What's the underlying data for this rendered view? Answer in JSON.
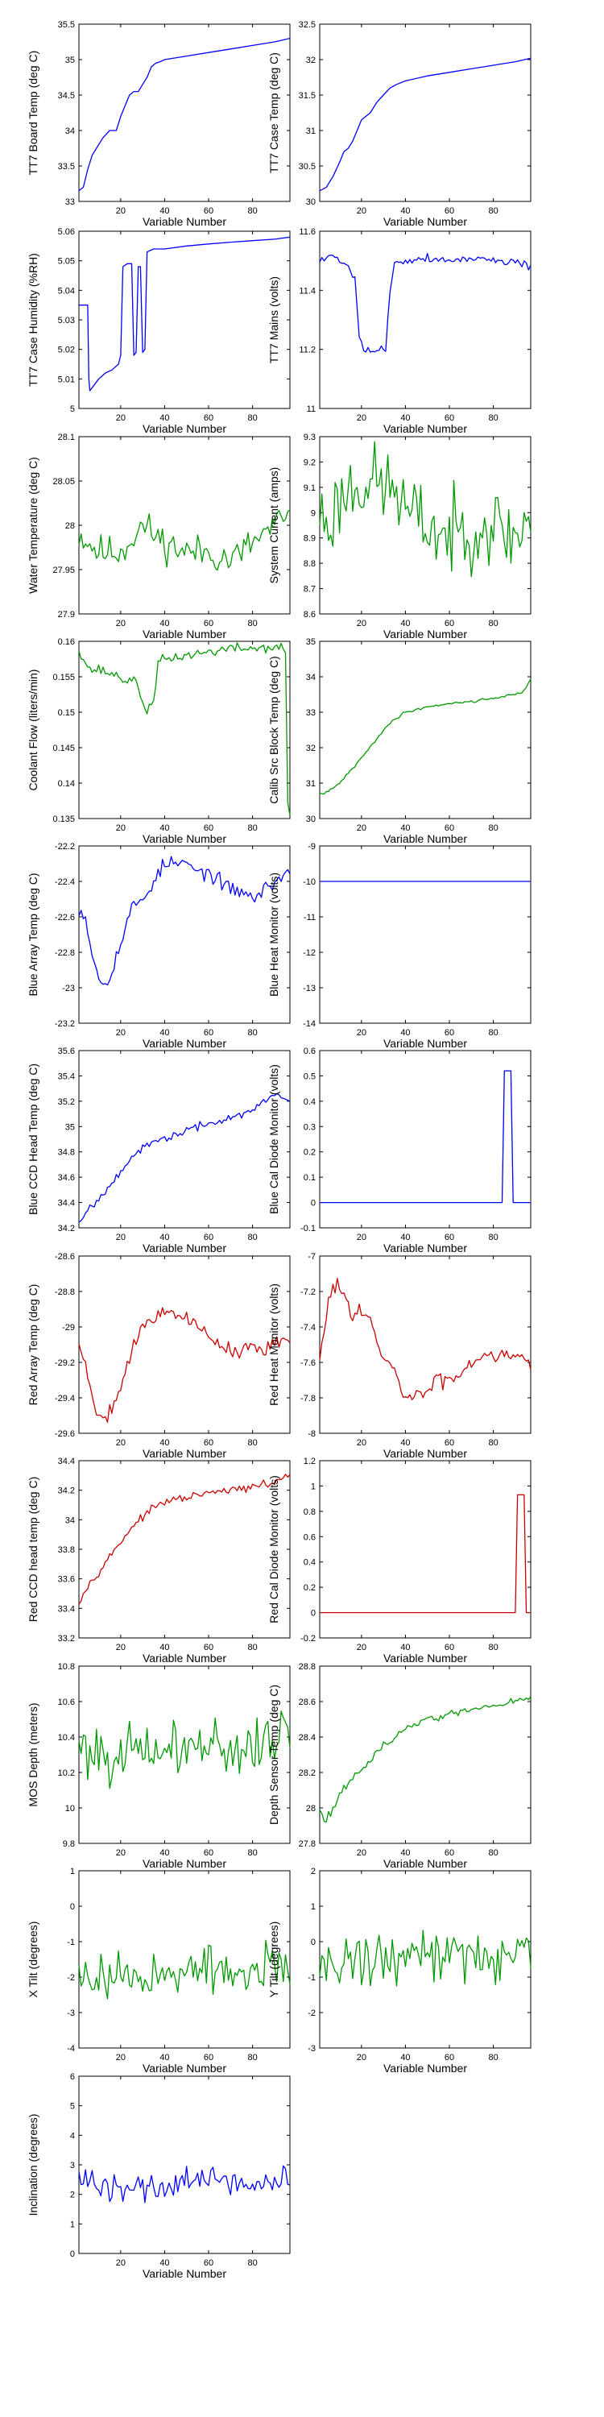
{
  "figure": {
    "background": "#ffffff",
    "x_label": "Variable Number",
    "x_ticks": [
      20,
      40,
      60,
      80
    ],
    "x_range": [
      1,
      97
    ]
  },
  "chart_data": [
    {
      "type": "line",
      "ylabel": "TT7 Board Temp (deg C)",
      "color": "#0000ff",
      "ylim": [
        33,
        35.5
      ],
      "yticks": [
        "33",
        "33.5",
        "34",
        "34.5",
        "35",
        "35.5"
      ],
      "x": [
        1,
        3,
        5,
        7,
        9,
        12,
        15,
        18,
        20,
        22,
        24,
        26,
        28,
        30,
        32,
        34,
        36,
        38,
        40,
        50,
        60,
        70,
        80,
        90,
        97
      ],
      "y": [
        33.15,
        33.2,
        33.45,
        33.65,
        33.75,
        33.9,
        34.0,
        34.0,
        34.2,
        34.35,
        34.5,
        34.55,
        34.55,
        34.65,
        34.75,
        34.9,
        34.95,
        34.97,
        35.0,
        35.05,
        35.1,
        35.15,
        35.2,
        35.25,
        35.3
      ]
    },
    {
      "type": "line",
      "ylabel": "TT7 Case Temp (deg C)",
      "color": "#0000ff",
      "ylim": [
        30,
        32.5
      ],
      "yticks": [
        "30",
        "30.5",
        "31",
        "31.5",
        "32",
        "32.5"
      ],
      "x": [
        1,
        4,
        7,
        10,
        12,
        14,
        16,
        18,
        20,
        22,
        24,
        27,
        30,
        33,
        36,
        40,
        50,
        60,
        70,
        80,
        90,
        97
      ],
      "y": [
        30.15,
        30.2,
        30.35,
        30.55,
        30.7,
        30.75,
        30.85,
        31.0,
        31.15,
        31.2,
        31.25,
        31.4,
        31.5,
        31.6,
        31.65,
        31.7,
        31.77,
        31.82,
        31.87,
        31.92,
        31.97,
        32.02
      ]
    },
    {
      "type": "line",
      "ylabel": "TT7 Case Humidity (%RH)",
      "color": "#0000ff",
      "ylim": [
        5,
        5.06
      ],
      "yticks": [
        "5",
        "5.01",
        "5.02",
        "5.03",
        "5.04",
        "5.05",
        "5.06"
      ],
      "x": [
        1,
        3,
        5,
        5.5,
        6,
        8,
        10,
        13,
        16,
        19,
        20,
        21,
        23,
        24,
        25,
        26,
        27,
        28,
        29,
        30,
        31,
        32,
        35,
        40,
        50,
        60,
        70,
        80,
        90,
        97
      ],
      "y": [
        5.035,
        5.035,
        5.035,
        5.01,
        5.006,
        5.008,
        5.01,
        5.012,
        5.013,
        5.015,
        5.018,
        5.048,
        5.049,
        5.049,
        5.049,
        5.018,
        5.019,
        5.048,
        5.048,
        5.019,
        5.02,
        5.053,
        5.054,
        5.054,
        5.055,
        5.0557,
        5.0563,
        5.0568,
        5.0573,
        5.058
      ]
    },
    {
      "type": "line",
      "ylabel": "TT7 Mains  (volts)",
      "color": "#0000ff",
      "ylim": [
        11,
        11.6
      ],
      "yticks": [
        "11",
        "11.2",
        "11.4",
        "11.6"
      ],
      "seed": 5,
      "noise": 0.012,
      "x": [
        1,
        5,
        10,
        14,
        17,
        19,
        21,
        23,
        26,
        29,
        31,
        33,
        35,
        40,
        50,
        60,
        70,
        80,
        90,
        97
      ],
      "y": [
        11.5,
        11.52,
        11.5,
        11.48,
        11.45,
        11.25,
        11.2,
        11.2,
        11.19,
        11.2,
        11.2,
        11.4,
        11.5,
        11.5,
        11.51,
        11.5,
        11.51,
        11.5,
        11.5,
        11.48
      ]
    },
    {
      "type": "line",
      "ylabel": "Water Temperature (deg C)",
      "color": "#009900",
      "ylim": [
        27.9,
        28.1
      ],
      "yticks": [
        "27.9",
        "27.95",
        "28",
        "28.05",
        "28.1"
      ],
      "seed": 11,
      "noise": 0.016,
      "x": [
        1,
        10,
        20,
        30,
        40,
        50,
        60,
        70,
        80,
        90,
        97
      ],
      "y": [
        27.99,
        27.97,
        27.97,
        28.0,
        27.98,
        27.97,
        27.97,
        27.96,
        27.98,
        28.0,
        28.01
      ]
    },
    {
      "type": "line",
      "ylabel": "System Current (amps)",
      "color": "#009900",
      "ylim": [
        8.6,
        9.3
      ],
      "yticks": [
        "8.6",
        "8.7",
        "8.8",
        "8.9",
        "9",
        "9.1",
        "9.2",
        "9.3"
      ],
      "seed": 23,
      "noise": 0.13,
      "x": [
        1,
        5,
        10,
        15,
        20,
        25,
        30,
        35,
        38,
        40,
        50,
        60,
        70,
        80,
        90,
        97
      ],
      "y": [
        9.0,
        8.95,
        9.05,
        9.1,
        9.12,
        9.12,
        9.1,
        9.1,
        9.05,
        9.0,
        8.95,
        8.9,
        8.95,
        8.95,
        8.9,
        9.0
      ]
    },
    {
      "type": "line",
      "ylabel": "Coolant Flow (liters/min)",
      "color": "#009900",
      "ylim": [
        0.135,
        0.16
      ],
      "yticks": [
        "0.135",
        "0.14",
        "0.145",
        "0.15",
        "0.155",
        "0.16"
      ],
      "seed": 37,
      "noise": 0.0006,
      "x": [
        1,
        4,
        6,
        10,
        15,
        20,
        24,
        27,
        30,
        32,
        35,
        37,
        40,
        50,
        60,
        70,
        80,
        90,
        95,
        96,
        97
      ],
      "y": [
        0.159,
        0.157,
        0.156,
        0.156,
        0.1555,
        0.155,
        0.154,
        0.155,
        0.151,
        0.1505,
        0.151,
        0.157,
        0.1575,
        0.158,
        0.1585,
        0.159,
        0.159,
        0.1592,
        0.1588,
        0.137,
        0.135
      ]
    },
    {
      "type": "line",
      "ylabel": "Calib Src Block Temp (deg C)",
      "color": "#009900",
      "ylim": [
        30,
        35
      ],
      "yticks": [
        "30",
        "31",
        "32",
        "33",
        "34",
        "35"
      ],
      "seed": 41,
      "noise": 0.03,
      "x": [
        1,
        5,
        10,
        15,
        20,
        25,
        30,
        35,
        40,
        50,
        60,
        70,
        80,
        90,
        94,
        97
      ],
      "y": [
        30.7,
        30.75,
        31.0,
        31.35,
        31.7,
        32.1,
        32.5,
        32.8,
        33.0,
        33.15,
        33.25,
        33.3,
        33.4,
        33.5,
        33.6,
        33.95
      ]
    },
    {
      "type": "line",
      "ylabel": "Blue Array Temp (deg C)",
      "color": "#0000ff",
      "ylim": [
        -23.2,
        -22.2
      ],
      "yticks": [
        "-23.2",
        "-23",
        "-22.8",
        "-22.6",
        "-22.4",
        "-22.2"
      ],
      "seed": 53,
      "noise": 0.035,
      "x": [
        1,
        4,
        7,
        10,
        13,
        16,
        20,
        25,
        30,
        35,
        40,
        45,
        50,
        55,
        60,
        65,
        70,
        75,
        80,
        85,
        90,
        97
      ],
      "y": [
        -22.55,
        -22.6,
        -22.8,
        -22.95,
        -22.97,
        -22.9,
        -22.75,
        -22.55,
        -22.5,
        -22.4,
        -22.3,
        -22.3,
        -22.3,
        -22.35,
        -22.35,
        -22.4,
        -22.45,
        -22.45,
        -22.5,
        -22.45,
        -22.4,
        -22.35
      ]
    },
    {
      "type": "line",
      "ylabel": "Blue Heat Monitor (volts)",
      "color": "#0000ff",
      "ylim": [
        -14,
        -9
      ],
      "yticks": [
        "-14",
        "-13",
        "-12",
        "-11",
        "-10",
        "-9"
      ],
      "x": [
        1,
        97
      ],
      "y": [
        -10,
        -10
      ]
    },
    {
      "type": "line",
      "ylabel": "Blue CCD Head Temp (deg C)",
      "color": "#0000ff",
      "ylim": [
        34.2,
        35.6
      ],
      "yticks": [
        "34.2",
        "34.4",
        "34.6",
        "34.8",
        "35",
        "35.2",
        "35.4",
        "35.6"
      ],
      "seed": 67,
      "noise": 0.025,
      "x": [
        1,
        5,
        10,
        15,
        20,
        25,
        30,
        35,
        40,
        50,
        60,
        70,
        80,
        85,
        90,
        95,
        97
      ],
      "y": [
        34.25,
        34.35,
        34.42,
        34.55,
        34.65,
        34.75,
        34.82,
        34.88,
        34.9,
        34.97,
        35.02,
        35.07,
        35.12,
        35.2,
        35.25,
        35.22,
        35.2
      ]
    },
    {
      "type": "line",
      "ylabel": "Blue Cal Diode Monitor (volts)",
      "color": "#0000ff",
      "ylim": [
        -0.1,
        0.6
      ],
      "yticks": [
        "-0.1",
        "0",
        "0.1",
        "0.2",
        "0.3",
        "0.4",
        "0.5",
        "0.6"
      ],
      "x": [
        1,
        84,
        85,
        86,
        87,
        88,
        89,
        97
      ],
      "y": [
        0,
        0,
        0.52,
        0.52,
        0.52,
        0.52,
        0,
        0
      ]
    },
    {
      "type": "line",
      "ylabel": "Red Array Temp (deg C)",
      "color": "#cc0000",
      "ylim": [
        -29.6,
        -28.6
      ],
      "yticks": [
        "-29.6",
        "-29.4",
        "-29.2",
        "-29",
        "-28.8",
        "-28.6"
      ],
      "seed": 79,
      "noise": 0.035,
      "x": [
        1,
        4,
        7,
        10,
        14,
        18,
        22,
        26,
        30,
        35,
        40,
        45,
        50,
        55,
        60,
        65,
        70,
        75,
        80,
        85,
        90,
        97
      ],
      "y": [
        -29.1,
        -29.2,
        -29.4,
        -29.5,
        -29.5,
        -29.4,
        -29.25,
        -29.1,
        -29.0,
        -28.95,
        -28.9,
        -28.92,
        -28.95,
        -29.0,
        -29.05,
        -29.1,
        -29.12,
        -29.15,
        -29.1,
        -29.15,
        -29.1,
        -29.05
      ]
    },
    {
      "type": "line",
      "ylabel": "Red Heat Monitor (volts)",
      "color": "#cc0000",
      "ylim": [
        -8,
        -7
      ],
      "yticks": [
        "-8",
        "-7.8",
        "-7.6",
        "-7.4",
        "-7.2",
        "-7"
      ],
      "seed": 83,
      "noise": 0.04,
      "x": [
        1,
        4,
        7,
        10,
        13,
        16,
        20,
        25,
        30,
        35,
        40,
        45,
        50,
        55,
        60,
        65,
        70,
        75,
        80,
        85,
        90,
        97
      ],
      "y": [
        -7.6,
        -7.35,
        -7.15,
        -7.18,
        -7.25,
        -7.3,
        -7.3,
        -7.4,
        -7.6,
        -7.65,
        -7.8,
        -7.8,
        -7.75,
        -7.7,
        -7.7,
        -7.65,
        -7.6,
        -7.55,
        -7.55,
        -7.55,
        -7.55,
        -7.6
      ]
    },
    {
      "type": "line",
      "ylabel": "Red CCD head temp (deg C)",
      "color": "#cc0000",
      "ylim": [
        33.2,
        34.4
      ],
      "yticks": [
        "33.2",
        "33.4",
        "33.6",
        "33.8",
        "34",
        "34.2",
        "34.4"
      ],
      "seed": 97,
      "noise": 0.02,
      "x": [
        1,
        5,
        10,
        15,
        20,
        25,
        30,
        35,
        40,
        50,
        60,
        70,
        80,
        90,
        95,
        97
      ],
      "y": [
        33.45,
        33.55,
        33.65,
        33.75,
        33.85,
        33.95,
        34.02,
        34.08,
        34.12,
        34.15,
        34.18,
        34.2,
        34.22,
        34.25,
        34.3,
        34.3
      ]
    },
    {
      "type": "line",
      "ylabel": "Red Cal Diode Monitor (volts)",
      "color": "#cc0000",
      "ylim": [
        -0.2,
        1.2
      ],
      "yticks": [
        "-0.2",
        "0",
        "0.2",
        "0.4",
        "0.6",
        "0.8",
        "1",
        "1.2"
      ],
      "x": [
        1,
        90,
        91,
        92,
        93,
        94,
        95,
        97
      ],
      "y": [
        0,
        0,
        0.93,
        0.93,
        0.93,
        0.93,
        0,
        0
      ]
    },
    {
      "type": "line",
      "ylabel": "MOS Depth  (meters)",
      "color": "#009900",
      "ylim": [
        9.8,
        10.8
      ],
      "yticks": [
        "9.8",
        "10",
        "10.2",
        "10.4",
        "10.6",
        "10.8"
      ],
      "seed": 101,
      "noise": 0.13,
      "x": [
        1,
        10,
        20,
        30,
        40,
        50,
        60,
        70,
        80,
        90,
        97
      ],
      "y": [
        10.35,
        10.32,
        10.3,
        10.3,
        10.33,
        10.35,
        10.35,
        10.33,
        10.35,
        10.4,
        10.45
      ]
    },
    {
      "type": "line",
      "ylabel": "Depth Sensor Temp (deg C)",
      "color": "#009900",
      "ylim": [
        27.8,
        28.8
      ],
      "yticks": [
        "27.8",
        "28",
        "28.2",
        "28.4",
        "28.6",
        "28.8"
      ],
      "seed": 113,
      "noise": 0.018,
      "x": [
        1,
        3,
        6,
        10,
        15,
        20,
        25,
        30,
        35,
        40,
        50,
        60,
        70,
        80,
        90,
        97
      ],
      "y": [
        28.0,
        27.93,
        27.98,
        28.07,
        28.15,
        28.22,
        28.28,
        28.35,
        28.4,
        28.45,
        28.5,
        28.53,
        28.55,
        28.58,
        28.6,
        28.62
      ]
    },
    {
      "type": "line",
      "ylabel": "X Tilt  (degrees)",
      "color": "#009900",
      "ylim": [
        -4,
        1
      ],
      "yticks": [
        "-4",
        "-3",
        "-2",
        "-1",
        "0",
        "1"
      ],
      "seed": 127,
      "noise": 0.55,
      "x": [
        1,
        10,
        20,
        30,
        40,
        50,
        60,
        70,
        80,
        90,
        97
      ],
      "y": [
        -1.9,
        -1.95,
        -1.95,
        -1.95,
        -1.9,
        -1.85,
        -1.8,
        -1.9,
        -1.85,
        -1.8,
        -1.9
      ]
    },
    {
      "type": "line",
      "ylabel": "Y Tilt  (degrees)",
      "color": "#009900",
      "ylim": [
        -3,
        2
      ],
      "yticks": [
        "-3",
        "-2",
        "-1",
        "0",
        "1",
        "2"
      ],
      "seed": 131,
      "noise": 0.6,
      "x": [
        1,
        10,
        20,
        30,
        40,
        50,
        60,
        70,
        80,
        90,
        97
      ],
      "y": [
        -0.6,
        -0.55,
        -0.5,
        -0.6,
        -0.4,
        -0.3,
        -0.3,
        -0.35,
        -0.4,
        -0.4,
        -0.45
      ]
    },
    {
      "type": "line",
      "ylabel": "Inclination  (degrees)",
      "color": "#0000ff",
      "ylim": [
        0,
        6
      ],
      "yticks": [
        "0",
        "1",
        "2",
        "3",
        "4",
        "5",
        "6"
      ],
      "seed": 139,
      "noise": 0.45,
      "x": [
        1,
        10,
        20,
        30,
        40,
        50,
        60,
        70,
        80,
        90,
        97
      ],
      "y": [
        2.4,
        2.3,
        2.2,
        2.2,
        2.3,
        2.4,
        2.5,
        2.45,
        2.4,
        2.4,
        2.5
      ]
    }
  ]
}
